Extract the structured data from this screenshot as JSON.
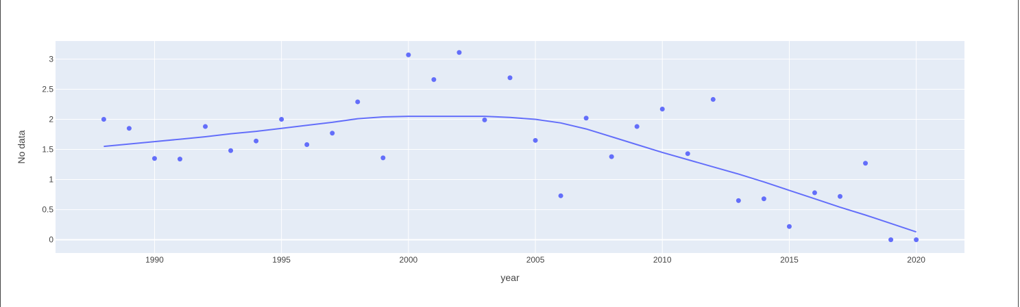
{
  "chart_data": {
    "type": "scatter",
    "xlabel": "year",
    "ylabel": "No data",
    "xlim": [
      1986.1,
      2021.9
    ],
    "ylim": [
      -0.22,
      3.3
    ],
    "xticks": [
      1990,
      1995,
      2000,
      2005,
      2010,
      2015,
      2020
    ],
    "yticks": [
      0,
      0.5,
      1,
      1.5,
      2,
      2.5,
      3
    ],
    "ytick_labels": [
      "0",
      "0.5",
      "1",
      "1.5",
      "2",
      "2.5",
      "3"
    ],
    "grid": true,
    "colors": {
      "marker": "#636efa",
      "line": "#636efa",
      "plot_bg": "#e5ecf6",
      "grid": "#ffffff"
    },
    "series": [
      {
        "mode": "markers",
        "x": [
          1988,
          1989,
          1990,
          1991,
          1992,
          1993,
          1994,
          1995,
          1996,
          1997,
          1998,
          1999,
          2000,
          2001,
          2002,
          2003,
          2004,
          2005,
          2006,
          2007,
          2008,
          2009,
          2010,
          2011,
          2012,
          2013,
          2014,
          2015,
          2016,
          2017,
          2018,
          2019,
          2020
        ],
        "y": [
          2.0,
          1.85,
          1.35,
          1.34,
          1.88,
          1.48,
          1.64,
          2.0,
          1.58,
          1.77,
          2.29,
          1.36,
          3.07,
          2.66,
          3.11,
          1.99,
          2.69,
          1.65,
          0.73,
          2.02,
          1.38,
          1.88,
          2.17,
          1.43,
          2.33,
          0.65,
          0.68,
          0.22,
          0.78,
          0.72,
          1.27,
          0.0,
          0.0
        ]
      },
      {
        "mode": "lines",
        "x": [
          1988,
          1989,
          1990,
          1991,
          1992,
          1993,
          1994,
          1995,
          1996,
          1997,
          1998,
          1999,
          2000,
          2001,
          2002,
          2003,
          2004,
          2005,
          2006,
          2007,
          2008,
          2009,
          2010,
          2011,
          2012,
          2013,
          2014,
          2015,
          2016,
          2017,
          2018,
          2019,
          2020
        ],
        "y": [
          1.55,
          1.59,
          1.63,
          1.67,
          1.71,
          1.76,
          1.8,
          1.85,
          1.9,
          1.95,
          2.01,
          2.04,
          2.05,
          2.05,
          2.05,
          2.05,
          2.03,
          2.0,
          1.94,
          1.84,
          1.71,
          1.58,
          1.45,
          1.33,
          1.21,
          1.09,
          0.96,
          0.82,
          0.68,
          0.54,
          0.41,
          0.27,
          0.13
        ]
      }
    ]
  }
}
